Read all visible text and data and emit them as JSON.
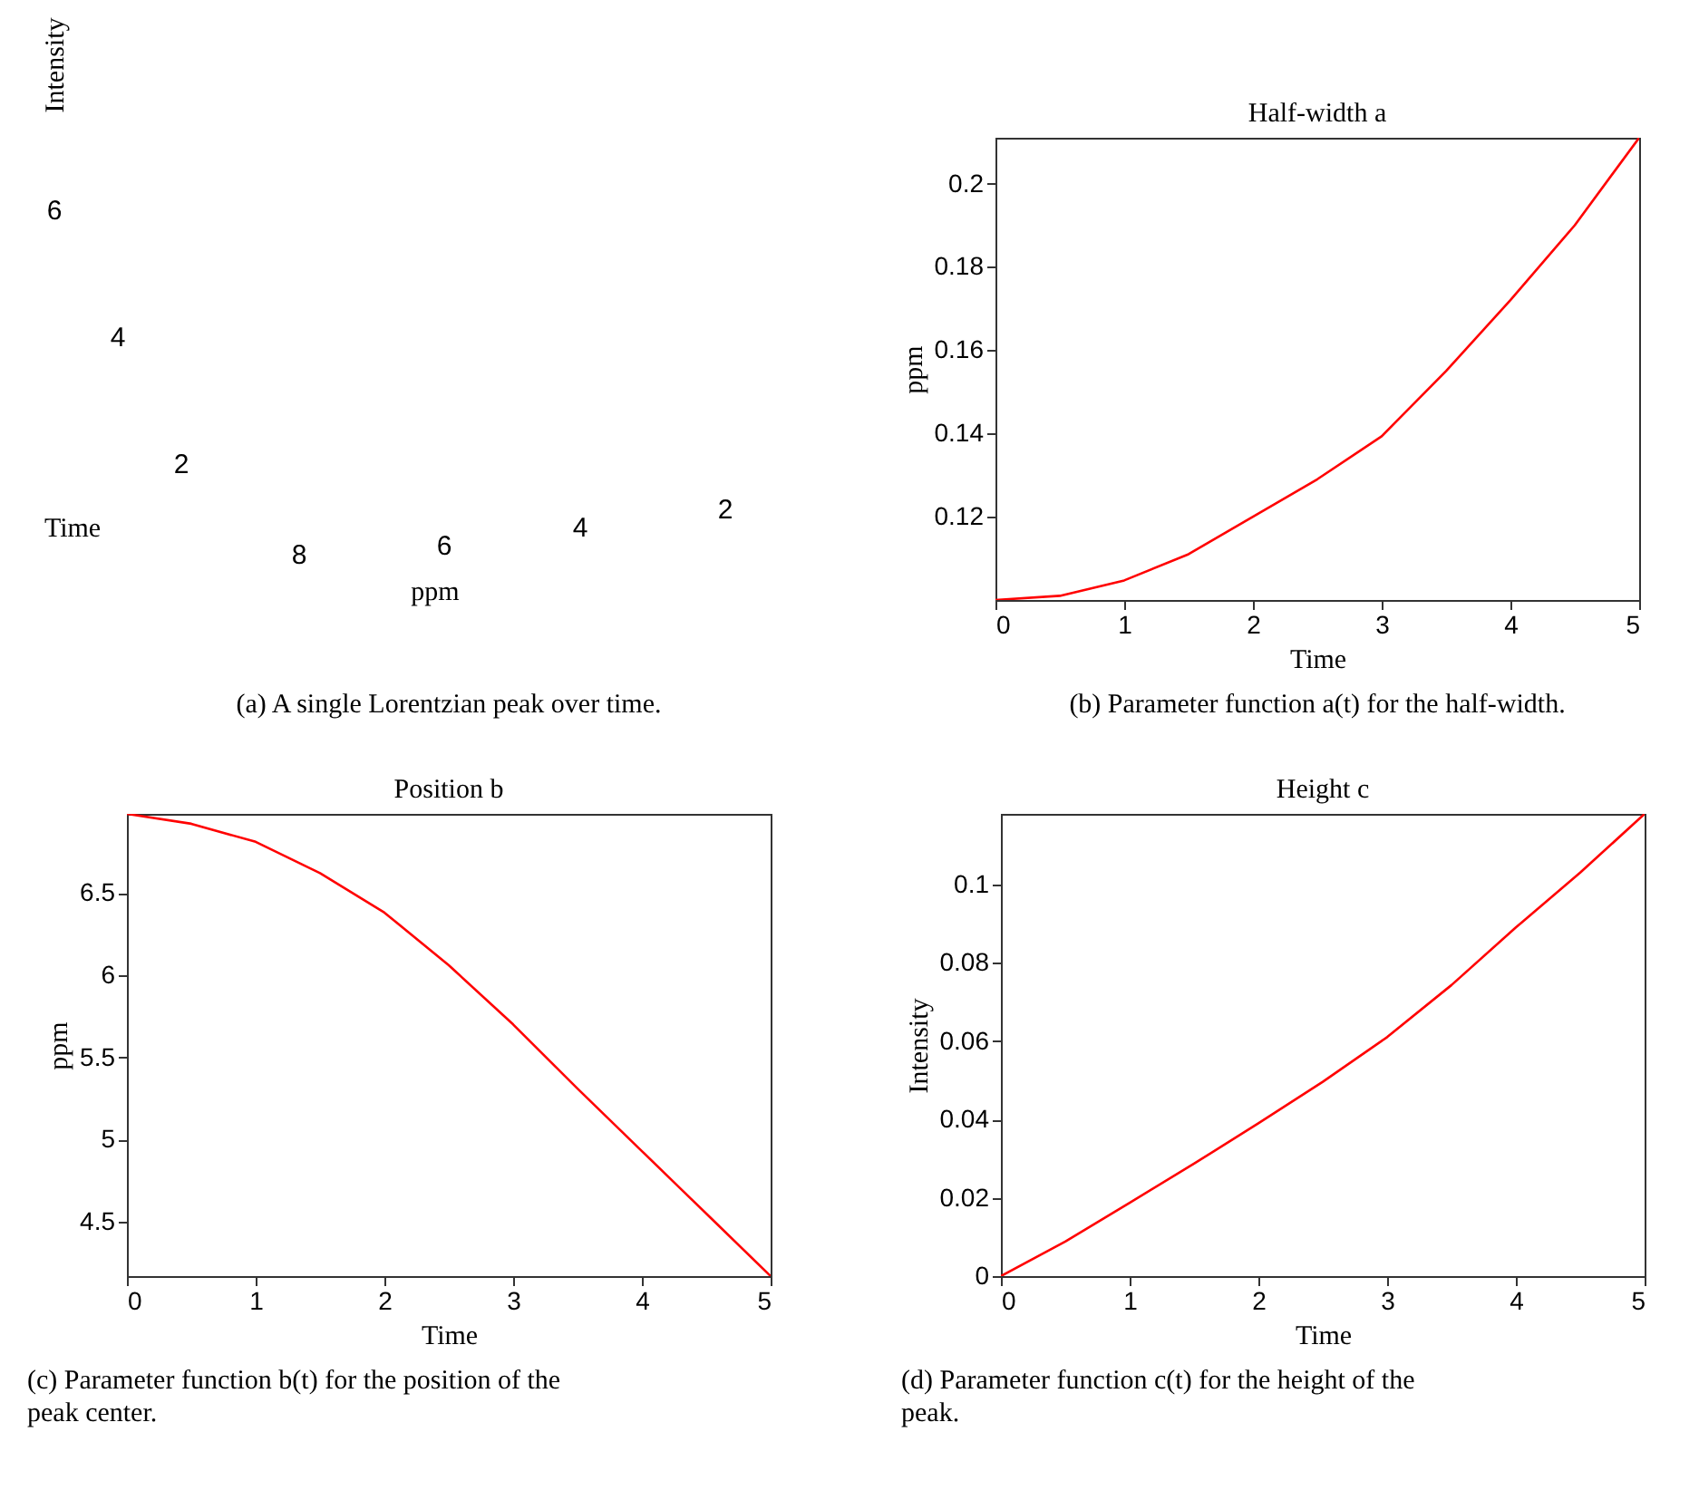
{
  "chart_data": [
    {
      "type": "other",
      "xlabel": "ppm",
      "ylabel": "Intensity",
      "annotations": [
        "Time",
        "6",
        "4",
        "2",
        "8",
        "6",
        "4",
        "2",
        "(a) A single Lorentzian peak over time."
      ]
    },
    {
      "type": "line",
      "title": "Half-width a",
      "xlabel": "Time",
      "ylabel": "ppm",
      "xlim": [
        0,
        5
      ],
      "xticks": [
        0,
        1,
        2,
        3,
        4,
        5
      ],
      "ylim": [
        0.1,
        0.211
      ],
      "yticks": [
        0.12,
        0.14,
        0.16,
        0.18,
        {
          "value": 0.2,
          "label": "0.2"
        }
      ],
      "x": [
        0,
        0.5,
        1,
        1.5,
        2,
        2.5,
        3,
        3.5,
        4,
        4.5,
        5
      ],
      "series": [
        {
          "color": "#ff0000",
          "values": [
            0.1,
            0.101,
            0.1047,
            0.111,
            0.12,
            0.129,
            0.1393,
            0.155,
            0.172,
            0.19,
            0.211
          ]
        }
      ],
      "annotations": [
        "(b) Parameter function a(t) for the half-width."
      ]
    },
    {
      "type": "line",
      "title": "Position b",
      "xlabel": "Time",
      "ylabel": "ppm",
      "xlim": [
        0,
        5
      ],
      "xticks": [
        0,
        1,
        2,
        3,
        4,
        5
      ],
      "ylim": [
        4.17,
        6.98
      ],
      "yticks": [
        4.5,
        5,
        5.5,
        6,
        6.5
      ],
      "x": [
        0,
        0.5,
        1,
        1.5,
        2,
        2.5,
        3,
        3.5,
        4,
        4.5,
        5
      ],
      "series": [
        {
          "color": "#ff0000",
          "values": [
            6.98,
            6.92,
            6.81,
            6.62,
            6.38,
            6.06,
            5.7,
            5.31,
            4.93,
            4.55,
            4.17
          ]
        }
      ],
      "annotations": [
        "(c) Parameter function b(t) for the position of the peak center."
      ]
    },
    {
      "type": "line",
      "title": "Height c",
      "xlabel": "Time",
      "ylabel": "Intensity",
      "xlim": [
        0,
        5
      ],
      "xticks": [
        0,
        1,
        2,
        3,
        4,
        5
      ],
      "ylim": [
        0,
        0.118
      ],
      "yticks": [
        0,
        0.02,
        0.04,
        0.06,
        0.08,
        {
          "value": 0.1,
          "label": "0.1"
        }
      ],
      "x": [
        0,
        0.5,
        1,
        1.5,
        2,
        2.5,
        3,
        3.5,
        4,
        4.5,
        5
      ],
      "series": [
        {
          "color": "#ff0000",
          "values": [
            0,
            0.0088,
            0.0187,
            0.0287,
            0.039,
            0.0496,
            0.061,
            0.0743,
            0.089,
            0.103,
            0.118
          ]
        }
      ],
      "annotations": [
        "(d) Parameter function c(t) for the height of the peak."
      ]
    }
  ]
}
